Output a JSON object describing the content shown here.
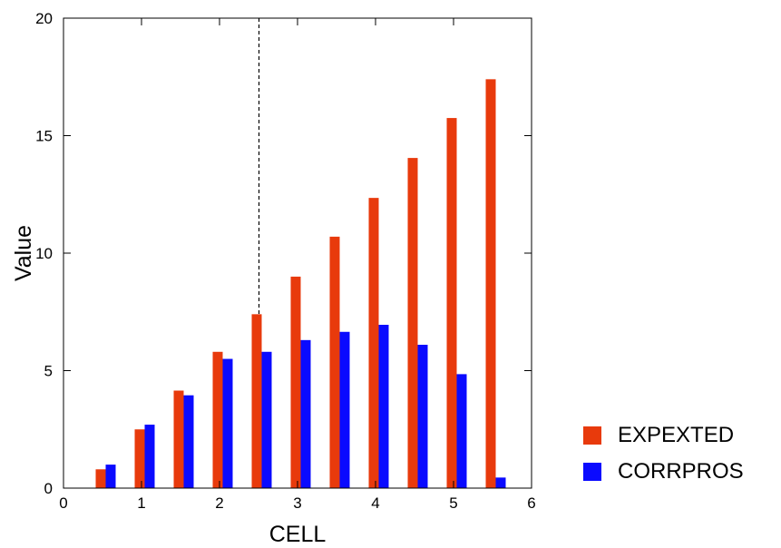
{
  "chart_data": {
    "type": "bar",
    "title": "",
    "xlabel": "CELL",
    "ylabel": "Value",
    "xlim": [
      0,
      6
    ],
    "ylim": [
      0,
      20
    ],
    "xticks": [
      0,
      1,
      2,
      3,
      4,
      5,
      6
    ],
    "yticks": [
      0,
      5,
      10,
      15,
      20
    ],
    "grid": false,
    "legend_position": "right-bottom",
    "reference_line_x": 2.5,
    "x": [
      0.5,
      1.0,
      1.5,
      2.0,
      2.5,
      3.0,
      3.5,
      4.0,
      4.5,
      5.0,
      5.5
    ],
    "series": [
      {
        "name": "EXPEXTED",
        "color": "#e83a0c",
        "values": [
          0.8,
          2.5,
          4.15,
          5.8,
          7.4,
          9.0,
          10.7,
          12.35,
          14.05,
          15.75,
          17.4
        ]
      },
      {
        "name": "CORRPROS",
        "color": "#0a0aff",
        "values": [
          1.0,
          2.7,
          3.95,
          5.5,
          5.8,
          6.3,
          6.65,
          6.95,
          6.1,
          4.85,
          0.45
        ]
      }
    ]
  }
}
